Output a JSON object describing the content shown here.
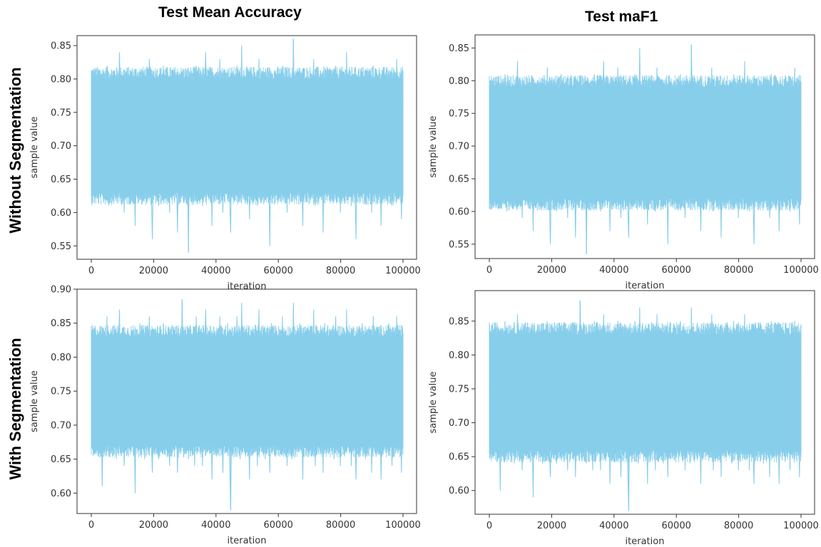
{
  "column_titles": [
    "Test Mean Accuracy",
    "Test maF1"
  ],
  "row_labels": [
    "Without Segmentation",
    "With Segmentation"
  ],
  "colors": {
    "trace": "#87ceeb",
    "axis": "#333333"
  },
  "chart_data": [
    {
      "type": "line",
      "xlabel": "iteration",
      "ylabel": "sample value",
      "x_range": [
        0,
        100000
      ],
      "ylim": [
        0.53,
        0.865
      ],
      "xticks": [
        0,
        20000,
        40000,
        60000,
        80000,
        100000
      ],
      "yticks": [
        0.55,
        0.6,
        0.65,
        0.7,
        0.75,
        0.8,
        0.85
      ],
      "central_band": [
        0.63,
        0.8
      ],
      "observed_min": 0.54,
      "observed_max": 0.86,
      "series": [
        {
          "values": [
            0.73,
            0.69,
            0.66,
            0.79,
            0.63,
            0.76,
            0.71,
            0.64,
            0.8,
            0.68,
            0.82,
            0.61,
            0.74,
            0.7,
            0.65,
            0.78,
            0.62,
            0.73,
            0.84,
            0.67,
            0.75,
            0.6,
            0.71,
            0.79,
            0.66,
            0.63,
            0.77,
            0.72,
            0.58,
            0.8,
            0.69,
            0.81,
            0.64,
            0.74,
            0.62,
            0.76,
            0.7,
            0.83,
            0.67,
            0.56,
            0.73,
            0.79,
            0.65,
            0.61,
            0.78,
            0.71,
            0.82,
            0.63,
            0.75,
            0.68,
            0.6,
            0.77,
            0.64,
            0.8,
            0.72,
            0.57,
            0.74,
            0.66,
            0.81,
            0.69,
            0.63,
            0.76,
            0.54,
            0.79,
            0.67,
            0.73,
            0.62,
            0.82,
            0.7,
            0.65,
            0.78,
            0.61,
            0.75,
            0.84,
            0.64,
            0.71,
            0.8,
            0.58,
            0.73,
            0.68,
            0.77,
            0.63,
            0.83,
            0.69,
            0.6,
            0.76,
            0.72,
            0.81,
            0.65,
            0.57,
            0.79,
            0.7,
            0.64,
            0.82,
            0.74,
            0.62,
            0.85,
            0.67,
            0.78,
            0.63,
            0.71,
            0.59,
            0.8,
            0.73,
            0.65,
            0.77,
            0.61,
            0.83,
            0.7,
            0.66,
            0.76,
            0.62,
            0.79,
            0.72,
            0.55,
            0.81,
            0.68,
            0.74,
            0.63,
            0.78,
            0.7,
            0.64,
            0.82,
            0.67,
            0.76,
            0.6,
            0.79,
            0.73,
            0.62,
            0.86,
            0.69,
            0.75,
            0.64,
            0.81,
            0.71,
            0.58,
            0.77,
            0.66,
            0.8,
            0.63,
            0.74,
            0.68,
            0.83,
            0.61,
            0.72,
            0.79,
            0.65,
            0.76,
            0.57,
            0.81,
            0.7,
            0.64,
            0.78,
            0.67,
            0.73,
            0.62,
            0.82,
            0.69,
            0.75,
            0.6,
            0.79,
            0.71,
            0.63,
            0.84,
            0.66,
            0.74,
            0.61,
            0.8,
            0.68,
            0.56,
            0.77,
            0.72,
            0.65,
            0.81,
            0.7,
            0.62,
            0.78,
            0.67,
            0.73,
            0.6,
            0.82,
            0.69,
            0.64,
            0.76,
            0.71,
            0.58,
            0.79,
            0.66,
            0.74,
            0.63,
            0.81,
            0.7,
            0.61,
            0.77,
            0.68,
            0.83,
            0.65,
            0.72,
            0.59,
            0.78
          ]
        }
      ]
    },
    {
      "type": "line",
      "xlabel": "iteration",
      "ylabel": "sample value",
      "x_range": [
        0,
        100000
      ],
      "ylim": [
        0.528,
        0.87
      ],
      "xticks": [
        0,
        20000,
        40000,
        60000,
        80000,
        100000
      ],
      "yticks": [
        0.55,
        0.6,
        0.65,
        0.7,
        0.75,
        0.8,
        0.85
      ],
      "central_band": [
        0.62,
        0.79
      ],
      "observed_min": 0.535,
      "observed_max": 0.855,
      "series": [
        {
          "values": [
            0.72,
            0.68,
            0.65,
            0.78,
            0.62,
            0.75,
            0.7,
            0.63,
            0.79,
            0.67,
            0.81,
            0.6,
            0.73,
            0.69,
            0.64,
            0.77,
            0.61,
            0.72,
            0.83,
            0.66,
            0.74,
            0.59,
            0.7,
            0.78,
            0.65,
            0.62,
            0.76,
            0.71,
            0.57,
            0.79,
            0.68,
            0.8,
            0.63,
            0.73,
            0.61,
            0.75,
            0.69,
            0.82,
            0.66,
            0.55,
            0.72,
            0.78,
            0.64,
            0.6,
            0.77,
            0.7,
            0.81,
            0.62,
            0.74,
            0.67,
            0.59,
            0.76,
            0.63,
            0.79,
            0.71,
            0.56,
            0.73,
            0.65,
            0.8,
            0.68,
            0.62,
            0.75,
            0.535,
            0.78,
            0.66,
            0.72,
            0.61,
            0.81,
            0.69,
            0.64,
            0.77,
            0.6,
            0.74,
            0.83,
            0.63,
            0.7,
            0.79,
            0.57,
            0.72,
            0.67,
            0.76,
            0.62,
            0.82,
            0.68,
            0.59,
            0.75,
            0.71,
            0.8,
            0.64,
            0.56,
            0.78,
            0.69,
            0.63,
            0.81,
            0.73,
            0.61,
            0.85,
            0.66,
            0.77,
            0.62,
            0.7,
            0.58,
            0.79,
            0.72,
            0.64,
            0.76,
            0.6,
            0.82,
            0.69,
            0.65,
            0.75,
            0.61,
            0.78,
            0.71,
            0.55,
            0.8,
            0.67,
            0.73,
            0.62,
            0.77,
            0.69,
            0.63,
            0.81,
            0.66,
            0.75,
            0.59,
            0.78,
            0.72,
            0.61,
            0.855,
            0.68,
            0.74,
            0.63,
            0.8,
            0.7,
            0.57,
            0.76,
            0.65,
            0.79,
            0.62,
            0.73,
            0.67,
            0.82,
            0.6,
            0.71,
            0.78,
            0.64,
            0.75,
            0.56,
            0.8,
            0.69,
            0.63,
            0.77,
            0.66,
            0.72,
            0.61,
            0.81,
            0.68,
            0.74,
            0.59,
            0.78,
            0.7,
            0.62,
            0.83,
            0.65,
            0.73,
            0.6,
            0.79,
            0.67,
            0.55,
            0.76,
            0.71,
            0.64,
            0.8,
            0.69,
            0.61,
            0.77,
            0.66,
            0.72,
            0.59,
            0.81,
            0.68,
            0.63,
            0.75,
            0.7,
            0.57,
            0.78,
            0.65,
            0.73,
            0.62,
            0.8,
            0.69,
            0.6,
            0.76,
            0.67,
            0.82,
            0.64,
            0.71,
            0.58,
            0.77
          ]
        }
      ]
    },
    {
      "type": "line",
      "xlabel": "iteration",
      "ylabel": "sample value",
      "x_range": [
        0,
        100000
      ],
      "ylim": [
        0.57,
        0.9
      ],
      "xticks": [
        0,
        20000,
        40000,
        60000,
        80000,
        100000
      ],
      "yticks": [
        0.6,
        0.65,
        0.7,
        0.75,
        0.8,
        0.85,
        0.9
      ],
      "central_band": [
        0.67,
        0.83
      ],
      "observed_min": 0.575,
      "observed_max": 0.885,
      "series": [
        {
          "values": [
            0.76,
            0.72,
            0.69,
            0.82,
            0.67,
            0.79,
            0.74,
            0.61,
            0.84,
            0.71,
            0.86,
            0.66,
            0.77,
            0.73,
            0.68,
            0.81,
            0.65,
            0.76,
            0.87,
            0.7,
            0.78,
            0.64,
            0.74,
            0.83,
            0.69,
            0.66,
            0.8,
            0.75,
            0.6,
            0.84,
            0.72,
            0.85,
            0.67,
            0.77,
            0.65,
            0.79,
            0.73,
            0.86,
            0.7,
            0.63,
            0.76,
            0.82,
            0.68,
            0.65,
            0.81,
            0.74,
            0.85,
            0.66,
            0.78,
            0.71,
            0.64,
            0.8,
            0.67,
            0.84,
            0.75,
            0.63,
            0.77,
            0.69,
            0.885,
            0.72,
            0.66,
            0.79,
            0.65,
            0.82,
            0.7,
            0.76,
            0.64,
            0.86,
            0.73,
            0.68,
            0.81,
            0.64,
            0.78,
            0.87,
            0.67,
            0.74,
            0.83,
            0.62,
            0.76,
            0.71,
            0.8,
            0.66,
            0.86,
            0.72,
            0.63,
            0.79,
            0.75,
            0.85,
            0.68,
            0.575,
            0.82,
            0.73,
            0.67,
            0.86,
            0.77,
            0.65,
            0.88,
            0.7,
            0.81,
            0.66,
            0.74,
            0.62,
            0.84,
            0.76,
            0.68,
            0.8,
            0.64,
            0.87,
            0.73,
            0.69,
            0.79,
            0.65,
            0.82,
            0.75,
            0.63,
            0.85,
            0.71,
            0.77,
            0.66,
            0.81,
            0.73,
            0.67,
            0.86,
            0.7,
            0.79,
            0.64,
            0.82,
            0.76,
            0.65,
            0.88,
            0.72,
            0.78,
            0.67,
            0.85,
            0.74,
            0.62,
            0.8,
            0.69,
            0.84,
            0.66,
            0.77,
            0.71,
            0.87,
            0.64,
            0.75,
            0.82,
            0.68,
            0.79,
            0.63,
            0.85,
            0.73,
            0.67,
            0.81,
            0.7,
            0.76,
            0.65,
            0.86,
            0.72,
            0.78,
            0.64,
            0.82,
            0.74,
            0.66,
            0.87,
            0.69,
            0.77,
            0.64,
            0.84,
            0.71,
            0.62,
            0.8,
            0.75,
            0.68,
            0.85,
            0.73,
            0.65,
            0.81,
            0.7,
            0.76,
            0.63,
            0.86,
            0.72,
            0.67,
            0.79,
            0.74,
            0.62,
            0.82,
            0.69,
            0.77,
            0.66,
            0.85,
            0.73,
            0.64,
            0.8,
            0.71,
            0.86,
            0.68,
            0.75,
            0.63,
            0.82
          ]
        }
      ]
    },
    {
      "type": "line",
      "xlabel": "iteration",
      "ylabel": "sample value",
      "x_range": [
        0,
        100000
      ],
      "ylim": [
        0.565,
        0.895
      ],
      "xticks": [
        0,
        20000,
        40000,
        60000,
        80000,
        100000
      ],
      "yticks": [
        0.6,
        0.65,
        0.7,
        0.75,
        0.8,
        0.85
      ],
      "central_band": [
        0.66,
        0.83
      ],
      "observed_min": 0.57,
      "observed_max": 0.88,
      "series": [
        {
          "values": [
            0.75,
            0.71,
            0.68,
            0.81,
            0.66,
            0.78,
            0.73,
            0.6,
            0.83,
            0.7,
            0.85,
            0.65,
            0.76,
            0.72,
            0.67,
            0.8,
            0.64,
            0.75,
            0.86,
            0.69,
            0.77,
            0.63,
            0.73,
            0.82,
            0.68,
            0.65,
            0.79,
            0.74,
            0.59,
            0.83,
            0.71,
            0.84,
            0.66,
            0.76,
            0.64,
            0.78,
            0.72,
            0.85,
            0.69,
            0.62,
            0.75,
            0.81,
            0.67,
            0.64,
            0.8,
            0.73,
            0.84,
            0.65,
            0.77,
            0.7,
            0.63,
            0.79,
            0.66,
            0.83,
            0.74,
            0.62,
            0.76,
            0.68,
            0.88,
            0.71,
            0.65,
            0.78,
            0.64,
            0.81,
            0.69,
            0.75,
            0.63,
            0.85,
            0.72,
            0.67,
            0.8,
            0.63,
            0.77,
            0.86,
            0.66,
            0.73,
            0.82,
            0.61,
            0.75,
            0.7,
            0.79,
            0.65,
            0.85,
            0.71,
            0.62,
            0.78,
            0.74,
            0.84,
            0.67,
            0.57,
            0.81,
            0.72,
            0.66,
            0.85,
            0.76,
            0.64,
            0.87,
            0.69,
            0.8,
            0.65,
            0.73,
            0.61,
            0.83,
            0.75,
            0.67,
            0.79,
            0.63,
            0.86,
            0.72,
            0.68,
            0.78,
            0.64,
            0.81,
            0.74,
            0.62,
            0.84,
            0.7,
            0.76,
            0.65,
            0.8,
            0.72,
            0.66,
            0.85,
            0.69,
            0.78,
            0.63,
            0.81,
            0.75,
            0.64,
            0.87,
            0.71,
            0.77,
            0.66,
            0.84,
            0.73,
            0.61,
            0.79,
            0.68,
            0.83,
            0.65,
            0.76,
            0.7,
            0.86,
            0.63,
            0.74,
            0.81,
            0.67,
            0.78,
            0.62,
            0.84,
            0.72,
            0.66,
            0.8,
            0.69,
            0.75,
            0.64,
            0.85,
            0.71,
            0.77,
            0.63,
            0.81,
            0.73,
            0.65,
            0.86,
            0.68,
            0.76,
            0.63,
            0.83,
            0.7,
            0.61,
            0.79,
            0.74,
            0.67,
            0.84,
            0.72,
            0.64,
            0.8,
            0.69,
            0.75,
            0.62,
            0.85,
            0.71,
            0.66,
            0.78,
            0.73,
            0.61,
            0.81,
            0.68,
            0.76,
            0.65,
            0.84,
            0.72,
            0.63,
            0.79,
            0.7,
            0.85,
            0.67,
            0.74,
            0.62,
            0.81
          ]
        }
      ]
    }
  ]
}
